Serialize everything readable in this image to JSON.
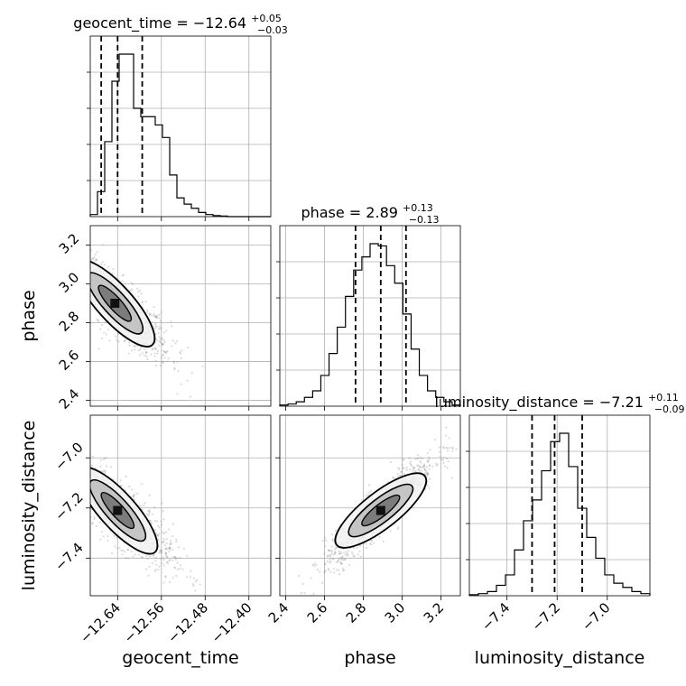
{
  "chart_data": {
    "type": "corner",
    "parameters": [
      "geocent_time",
      "phase",
      "luminosity_distance"
    ],
    "titles": [
      {
        "param": "geocent_time",
        "label": "geocent_time",
        "median": "−12.64",
        "plus": "+0.05",
        "minus": "−0.03"
      },
      {
        "param": "phase",
        "label": "phase",
        "median": "2.89",
        "plus": "+0.13",
        "minus": "−0.13"
      },
      {
        "param": "luminosity_distance",
        "label": "luminosity_distance",
        "median": "−7.21",
        "plus": "+0.11",
        "minus": "−0.09"
      }
    ],
    "axes": {
      "geocent_time": {
        "range": [
          -12.69,
          -12.36
        ],
        "ticks": [
          -12.64,
          -12.56,
          -12.48,
          -12.4
        ],
        "tick_labels": [
          "−12.64",
          "−12.56",
          "−12.48",
          "−12.40"
        ]
      },
      "phase": {
        "range": [
          2.37,
          3.3
        ],
        "ticks": [
          2.4,
          2.6,
          2.8,
          3.0,
          3.2
        ],
        "tick_labels": [
          "2.4",
          "2.6",
          "2.8",
          "3.0",
          "3.2"
        ]
      },
      "luminosity_distance": {
        "range": [
          -7.55,
          -6.83
        ],
        "ticks": [
          -7.4,
          -7.2,
          -7.0
        ],
        "tick_labels": [
          "−7.4",
          "−7.2",
          "−7.0"
        ]
      }
    },
    "quantiles": {
      "geocent_time": [
        -12.67,
        -12.64,
        -12.595
      ],
      "phase": [
        2.76,
        2.89,
        3.02
      ],
      "luminosity_distance": [
        -7.3,
        -7.21,
        -7.1
      ]
    },
    "histograms": {
      "geocent_time": {
        "edges_range": [
          -12.69,
          -12.36
        ],
        "counts": [
          1,
          12,
          36,
          65,
          78,
          78,
          52,
          48,
          48,
          44,
          38,
          20,
          9,
          6,
          4,
          2,
          1,
          0.5,
          0.3,
          0,
          0,
          0,
          0,
          0,
          0
        ]
      },
      "phase": {
        "edges_range": [
          2.37,
          3.3
        ],
        "counts": [
          0.5,
          1,
          2,
          4,
          7,
          14,
          24,
          36,
          50,
          62,
          68,
          74,
          73,
          64,
          56,
          42,
          26,
          14,
          7,
          4,
          2,
          0.5
        ]
      },
      "luminosity_distance": {
        "edges_range": [
          -7.55,
          -6.83
        ],
        "counts": [
          0.5,
          1,
          2,
          5,
          10,
          22,
          36,
          46,
          60,
          74,
          78,
          62,
          42,
          28,
          18,
          10,
          6,
          4,
          2,
          1
        ]
      }
    },
    "pairs": [
      {
        "x": "geocent_time",
        "y": "phase",
        "center": [
          -12.645,
          2.9
        ],
        "correlation": -0.85
      },
      {
        "x": "geocent_time",
        "y": "luminosity_distance",
        "center": [
          -12.64,
          -7.21
        ],
        "correlation": -0.82
      },
      {
        "x": "phase",
        "y": "luminosity_distance",
        "center": [
          2.89,
          -7.21
        ],
        "correlation": 0.92
      }
    ],
    "grid": true
  }
}
